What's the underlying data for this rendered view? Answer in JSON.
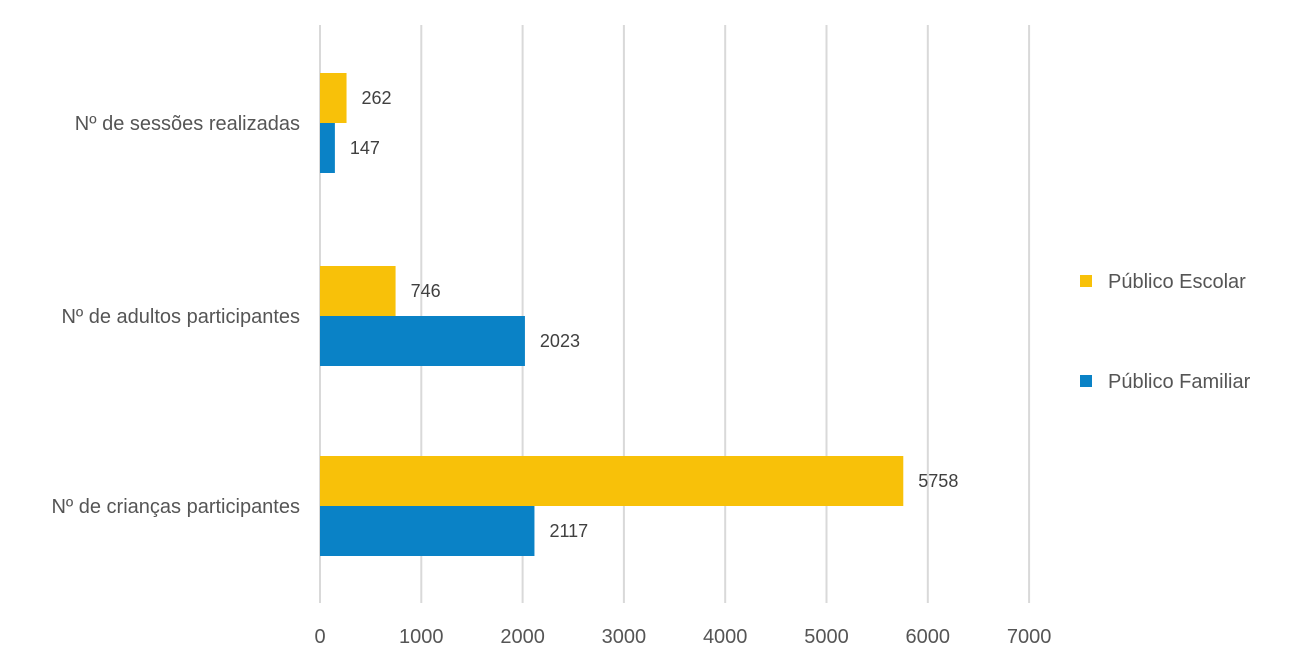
{
  "chart_data": {
    "type": "bar",
    "orientation": "horizontal",
    "categories": [
      "Nº de sessões realizadas",
      "Nº de adultos participantes",
      "Nº de crianças participantes"
    ],
    "series": [
      {
        "name": "Público Escolar",
        "color": "#f8c109",
        "values": [
          262,
          746,
          5758
        ]
      },
      {
        "name": "Público Familiar",
        "color": "#0a82c6",
        "values": [
          147,
          2023,
          2117
        ]
      }
    ],
    "xlim": [
      0,
      7000
    ],
    "xticks": [
      "0",
      "1000",
      "2000",
      "3000",
      "4000",
      "5000",
      "6000",
      "7000"
    ],
    "grid": "vertical",
    "legend_position": "right",
    "data_labels": true
  }
}
